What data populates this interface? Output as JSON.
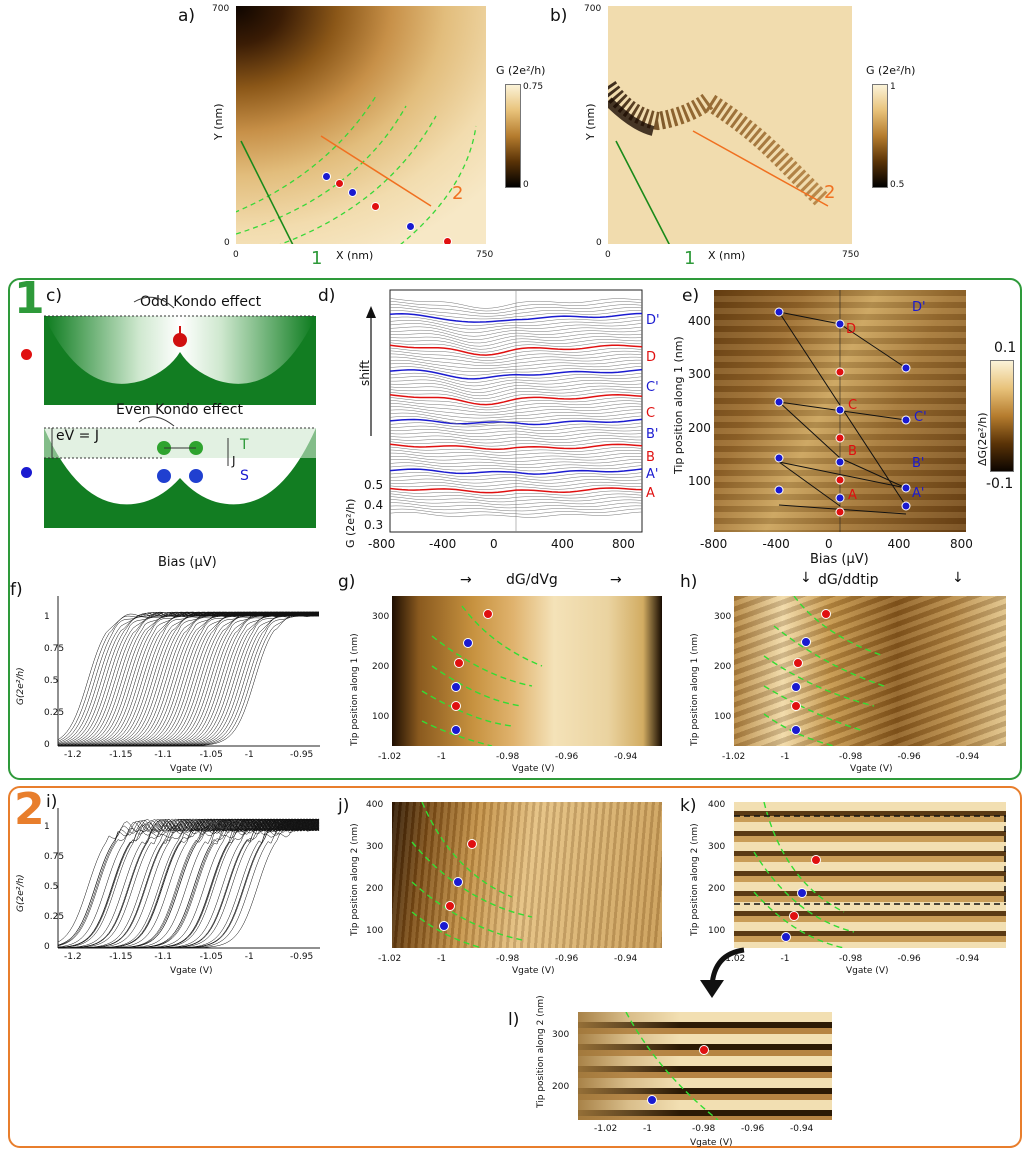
{
  "panel_labels": {
    "a": "a)",
    "b": "b)",
    "c": "c)",
    "d": "d)",
    "e": "e)",
    "f": "f)",
    "g": "g)",
    "h": "h)",
    "i": "i)",
    "j": "j)",
    "k": "k)",
    "l": "l)"
  },
  "section_labels": {
    "one": "1",
    "two": "2"
  },
  "colors": {
    "green": "#2e9a3a",
    "orange": "#e87e2c",
    "red": "#e01010",
    "blue": "#1a1ad0",
    "dashed_green": "#33dd33"
  },
  "map_a": {
    "x_axis": "X (nm)",
    "y_axis": "Y (nm)",
    "x0": "0",
    "x1": "750",
    "y0": "0",
    "y1": "700",
    "cb_label": "G (2e²/h)",
    "cb_top": "0.75",
    "cb_bot": "0",
    "line1": "1",
    "line2": "2"
  },
  "map_b": {
    "x_axis": "X (nm)",
    "y_axis": "Y (nm)",
    "x0": "0",
    "x1": "750",
    "y0": "0",
    "y1": "700",
    "cb_label": "G (2e²/h)",
    "cb_top": "1",
    "cb_bot": "0.5",
    "line1": "1",
    "line2": "2"
  },
  "panel_c": {
    "odd": "Odd Kondo effect",
    "even": "Even Kondo effect",
    "ev": "eV = J",
    "j": "J",
    "t": "T",
    "s": "S",
    "bias": "Bias (μV)"
  },
  "panel_d": {
    "shift": "shift",
    "ylabel": "G (2e²/h)",
    "yticks": [
      "0.5",
      "0.4",
      "0.3"
    ],
    "xticks": [
      "-800",
      "-400",
      "0",
      "400",
      "800"
    ],
    "labels": [
      {
        "t": "D'",
        "c": "blue"
      },
      {
        "t": "D",
        "c": "red"
      },
      {
        "t": "C'",
        "c": "blue"
      },
      {
        "t": "C",
        "c": "red"
      },
      {
        "t": "B'",
        "c": "blue"
      },
      {
        "t": "B",
        "c": "red"
      },
      {
        "t": "A'",
        "c": "blue"
      },
      {
        "t": "A",
        "c": "red"
      }
    ]
  },
  "panel_e": {
    "ylabel": "Tip position along 1 (nm)",
    "xlabel": "Bias (μV)",
    "yticks": [
      "400",
      "300",
      "200",
      "100"
    ],
    "xticks": [
      "-800",
      "-400",
      "0",
      "400",
      "800"
    ],
    "cb_label": "ΔG(2e²/h)",
    "cb_top": "0.1",
    "cb_bot": "-0.1",
    "labels": [
      {
        "t": "D'",
        "c": "blue"
      },
      {
        "t": "D",
        "c": "red"
      },
      {
        "t": "C'",
        "c": "blue"
      },
      {
        "t": "C",
        "c": "red"
      },
      {
        "t": "B'",
        "c": "blue"
      },
      {
        "t": "B",
        "c": "red"
      },
      {
        "t": "A'",
        "c": "blue"
      },
      {
        "t": "A",
        "c": "red"
      }
    ]
  },
  "panel_f": {
    "ylabel": "G(2e²/h)",
    "xlabel": "Vgate (V)",
    "yticks": [
      "1",
      "0.75",
      "0.5",
      "0.25",
      "0"
    ],
    "xticks": [
      "-1.2",
      "-1.15",
      "-1.1",
      "-1.05",
      "-1",
      "-0.95"
    ]
  },
  "panel_g": {
    "title": "dG/dVg",
    "ylabel": "Tip position along 1 (nm)",
    "xlabel": "Vgate (V)",
    "yticks": [
      "300",
      "200",
      "100"
    ],
    "xticks": [
      "-1.02",
      "-1",
      "-0.98",
      "-0.96",
      "-0.94"
    ]
  },
  "panel_h": {
    "title": "dG/ddtip",
    "ylabel": "Tip position along 1 (nm)",
    "xlabel": "Vgate (V)",
    "yticks": [
      "300",
      "200",
      "100"
    ],
    "xticks": [
      "-1.02",
      "-1",
      "-0.98",
      "-0.96",
      "-0.94"
    ]
  },
  "panel_i": {
    "ylabel": "G(2e²/h)",
    "xlabel": "Vgate (V)",
    "yticks": [
      "1",
      "0.75",
      "0.5",
      "0.25",
      "0"
    ],
    "xticks": [
      "-1.2",
      "-1.15",
      "-1.1",
      "-1.05",
      "-1",
      "-0.95"
    ]
  },
  "panel_j": {
    "ylabel": "Tip position along 2 (nm)",
    "xlabel": "Vgate (V)",
    "yticks": [
      "400",
      "300",
      "200",
      "100"
    ],
    "xticks": [
      "-1.02",
      "-1",
      "-0.98",
      "-0.96",
      "-0.94"
    ]
  },
  "panel_k": {
    "ylabel": "Tip position along 2 (nm)",
    "xlabel": "Vgate (V)",
    "yticks": [
      "400",
      "300",
      "200",
      "100"
    ],
    "xticks": [
      "-1.02",
      "-1",
      "-0.98",
      "-0.96",
      "-0.94"
    ]
  },
  "panel_l": {
    "ylabel": "Tip position along 2 (nm)",
    "xlabel": "Vgate (V)",
    "yticks": [
      "300",
      "200"
    ],
    "xticks": [
      "-1.02",
      "-1",
      "-0.98",
      "-0.96",
      "-0.94"
    ]
  }
}
